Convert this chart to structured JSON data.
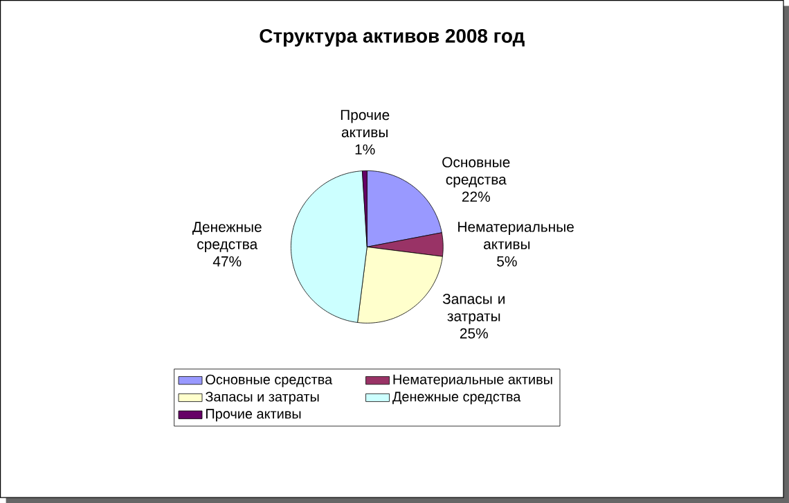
{
  "chart_data": {
    "type": "pie",
    "title": "Структура активов 2008 год",
    "categories": [
      "Основные средства",
      "Нематериальные активы",
      "Запасы и затраты",
      "Денежные средства",
      "Прочие активы"
    ],
    "values": [
      22,
      5,
      25,
      47,
      1
    ],
    "colors": [
      "#9999ff",
      "#993366",
      "#ffffcc",
      "#ccffff",
      "#660066"
    ],
    "value_labels": [
      "22%",
      "5%",
      "25%",
      "47%",
      "1%"
    ],
    "legend": "bottom"
  }
}
